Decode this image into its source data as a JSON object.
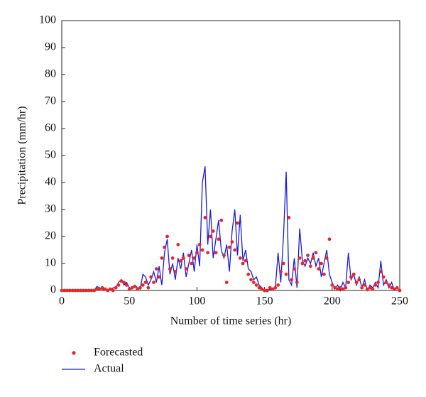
{
  "chart_data": {
    "type": "line",
    "xlabel": "Number of time series (hr)",
    "ylabel": "Precipitation (mm/hr)",
    "xlim": [
      0,
      250
    ],
    "xticks": [
      0,
      50,
      100,
      150,
      200,
      250
    ],
    "ylim": [
      0,
      100
    ],
    "yticks": [
      0,
      10,
      20,
      30,
      40,
      50,
      60,
      70,
      80,
      90,
      100
    ],
    "x": [
      0,
      2,
      4,
      6,
      8,
      10,
      12,
      14,
      16,
      18,
      20,
      22,
      24,
      26,
      28,
      30,
      32,
      34,
      36,
      38,
      40,
      42,
      44,
      46,
      48,
      50,
      52,
      54,
      56,
      58,
      60,
      62,
      64,
      66,
      68,
      70,
      72,
      74,
      76,
      78,
      80,
      82,
      84,
      86,
      88,
      90,
      92,
      94,
      96,
      98,
      100,
      102,
      104,
      106,
      108,
      110,
      112,
      114,
      116,
      118,
      120,
      122,
      124,
      126,
      128,
      130,
      132,
      134,
      136,
      138,
      140,
      142,
      144,
      146,
      148,
      150,
      152,
      154,
      156,
      158,
      160,
      162,
      164,
      166,
      168,
      170,
      172,
      174,
      176,
      178,
      180,
      182,
      184,
      186,
      188,
      190,
      192,
      194,
      196,
      198,
      200,
      202,
      204,
      206,
      208,
      210,
      212,
      214,
      216,
      218,
      220,
      222,
      224,
      226,
      228,
      230,
      232,
      234,
      236,
      238,
      240,
      242,
      244,
      246,
      248,
      250
    ],
    "series": [
      {
        "name": "Forecasted",
        "style": "scatter",
        "color": "#e8262a",
        "values": [
          0,
          0,
          0,
          0,
          0,
          0,
          0,
          0,
          0,
          0,
          0,
          0,
          0,
          0.5,
          0.5,
          1,
          0.5,
          0,
          0.5,
          0,
          1,
          2,
          3.5,
          3,
          2,
          0.5,
          1,
          1.5,
          0.5,
          1,
          2,
          3,
          1,
          5,
          3,
          8,
          5,
          12,
          16,
          20,
          8,
          12,
          7,
          17,
          11,
          12,
          8,
          13,
          10,
          12,
          14,
          17,
          15,
          27,
          14,
          20,
          22,
          14,
          19,
          26,
          13,
          3,
          16,
          18,
          15,
          25,
          12,
          10,
          11,
          6,
          4,
          3,
          2,
          1,
          0.5,
          0,
          0,
          1,
          0.5,
          1,
          2,
          7,
          10,
          6,
          27,
          4,
          8,
          3,
          12,
          10,
          11,
          13,
          9,
          12,
          14,
          8,
          10,
          6,
          12,
          19,
          2,
          1,
          0.5,
          1,
          0.5,
          1,
          3,
          5,
          6,
          3,
          4,
          1,
          2,
          0.5,
          1,
          0.5,
          2,
          3,
          7,
          5,
          3,
          2,
          1,
          0.5,
          1,
          0
        ]
      },
      {
        "name": "Actual",
        "style": "line",
        "color": "#1a1adc",
        "values": [
          0,
          0,
          0,
          0,
          0,
          0,
          0,
          0,
          0,
          0,
          0,
          0,
          0,
          1.5,
          1,
          0.5,
          0,
          0.5,
          0,
          1,
          1,
          3,
          4,
          2,
          3,
          1,
          0.5,
          2,
          1,
          0.5,
          6,
          5,
          2,
          4,
          7,
          3,
          9,
          2,
          14,
          19,
          6,
          10,
          4,
          12,
          8,
          14,
          5,
          10,
          15,
          7,
          17,
          9,
          40,
          46,
          17,
          30,
          12,
          19,
          26,
          15,
          12,
          17,
          7,
          22,
          30,
          13,
          28,
          11,
          15,
          8,
          7,
          4,
          5,
          2,
          1,
          0,
          0,
          0.5,
          0,
          1,
          14,
          3,
          20,
          44,
          4,
          2,
          12,
          1,
          23,
          11,
          9,
          12,
          10,
          14,
          9,
          12,
          5,
          10,
          15,
          6,
          3,
          0.5,
          2,
          0,
          3,
          1,
          14,
          4,
          6,
          2,
          5,
          1,
          4,
          0,
          2,
          1,
          3,
          1,
          11,
          2,
          4,
          1,
          3,
          0,
          1,
          0
        ]
      }
    ]
  }
}
